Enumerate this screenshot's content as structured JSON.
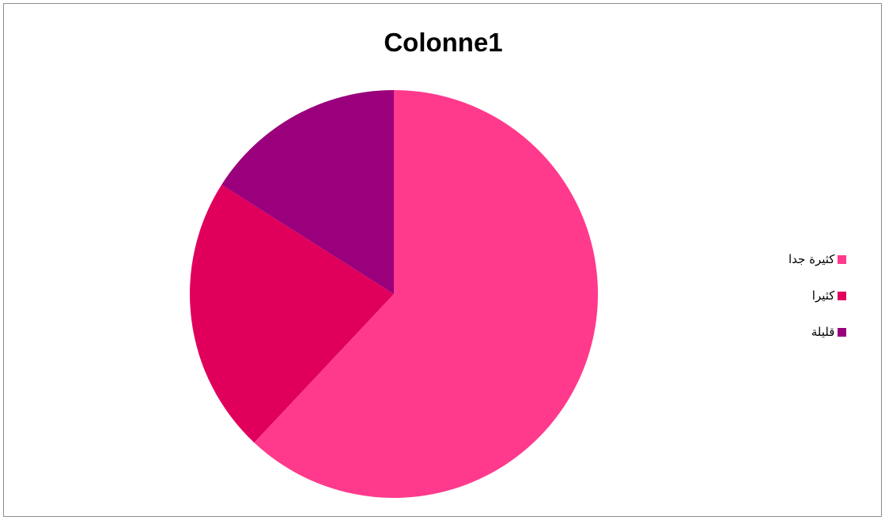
{
  "chart_data": {
    "type": "pie",
    "title": "Colonne1",
    "categories": [
      "كثيرة جدا",
      "كثيرا",
      "قليلة"
    ],
    "values": [
      62,
      22,
      16
    ],
    "colors": [
      "#ff3a8c",
      "#e0005c",
      "#9a007c"
    ],
    "legend_position": "right"
  }
}
